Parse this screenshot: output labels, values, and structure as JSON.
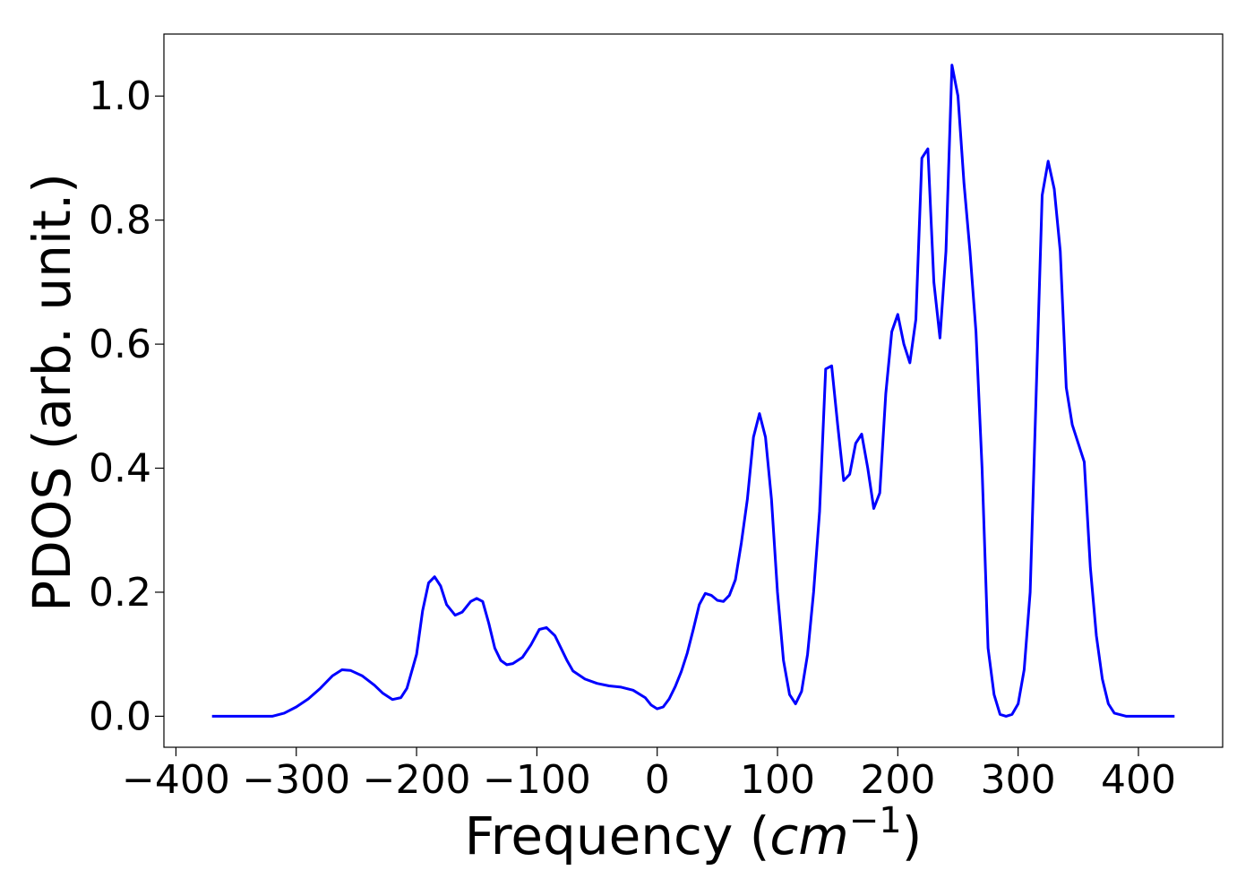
{
  "chart_data": {
    "type": "line",
    "title": "",
    "xlabel_prefix": "Frequency (",
    "xlabel_math_base": "cm",
    "xlabel_math_sup": "−1",
    "xlabel_suffix": ")",
    "ylabel": "PDOS (arb. unit.)",
    "xlim": [
      -410,
      470
    ],
    "ylim": [
      -0.05,
      1.1
    ],
    "xticks": [
      -400,
      -300,
      -200,
      -100,
      0,
      100,
      200,
      300,
      400
    ],
    "xtick_labels": [
      "−400",
      "−300",
      "−200",
      "−100",
      "0",
      "100",
      "200",
      "300",
      "400"
    ],
    "yticks": [
      0.0,
      0.2,
      0.4,
      0.6,
      0.8,
      1.0
    ],
    "ytick_labels": [
      "0.0",
      "0.2",
      "0.4",
      "0.6",
      "0.8",
      "1.0"
    ],
    "grid": false,
    "series": [
      {
        "color": "#0000ff",
        "x": [
          -370,
          -320,
          -310,
          -300,
          -290,
          -280,
          -270,
          -262,
          -255,
          -245,
          -235,
          -228,
          -220,
          -213,
          -208,
          -200,
          -195,
          -190,
          -185,
          -180,
          -175,
          -168,
          -162,
          -155,
          -150,
          -145,
          -140,
          -135,
          -130,
          -125,
          -120,
          -112,
          -105,
          -98,
          -92,
          -85,
          -80,
          -75,
          -70,
          -60,
          -50,
          -40,
          -30,
          -20,
          -10,
          -5,
          0,
          5,
          10,
          15,
          20,
          25,
          30,
          35,
          40,
          45,
          50,
          55,
          60,
          65,
          70,
          75,
          80,
          85,
          90,
          95,
          100,
          105,
          110,
          115,
          120,
          125,
          130,
          135,
          140,
          145,
          150,
          155,
          160,
          165,
          170,
          175,
          180,
          185,
          190,
          195,
          200,
          205,
          210,
          215,
          220,
          225,
          230,
          235,
          240,
          245,
          250,
          255,
          260,
          265,
          270,
          275,
          280,
          285,
          290,
          295,
          300,
          305,
          310,
          315,
          320,
          325,
          330,
          335,
          340,
          345,
          350,
          355,
          360,
          365,
          370,
          375,
          380,
          390,
          400,
          430
        ],
        "y": [
          0.0,
          0.0,
          0.005,
          0.015,
          0.028,
          0.045,
          0.065,
          0.075,
          0.074,
          0.065,
          0.05,
          0.037,
          0.027,
          0.03,
          0.045,
          0.1,
          0.17,
          0.215,
          0.225,
          0.21,
          0.18,
          0.163,
          0.168,
          0.185,
          0.19,
          0.185,
          0.15,
          0.11,
          0.09,
          0.083,
          0.085,
          0.095,
          0.115,
          0.14,
          0.143,
          0.13,
          0.11,
          0.09,
          0.073,
          0.06,
          0.053,
          0.049,
          0.047,
          0.042,
          0.03,
          0.018,
          0.012,
          0.015,
          0.028,
          0.048,
          0.072,
          0.102,
          0.14,
          0.18,
          0.198,
          0.195,
          0.187,
          0.185,
          0.195,
          0.22,
          0.28,
          0.35,
          0.45,
          0.488,
          0.45,
          0.35,
          0.2,
          0.09,
          0.035,
          0.02,
          0.04,
          0.1,
          0.2,
          0.33,
          0.56,
          0.565,
          0.47,
          0.38,
          0.39,
          0.44,
          0.455,
          0.4,
          0.335,
          0.36,
          0.52,
          0.62,
          0.648,
          0.6,
          0.57,
          0.64,
          0.9,
          0.915,
          0.7,
          0.61,
          0.75,
          1.05,
          1.0,
          0.86,
          0.75,
          0.62,
          0.4,
          0.11,
          0.035,
          0.003,
          0.0,
          0.003,
          0.02,
          0.075,
          0.2,
          0.52,
          0.84,
          0.895,
          0.85,
          0.75,
          0.53,
          0.47,
          0.44,
          0.41,
          0.24,
          0.13,
          0.06,
          0.02,
          0.005,
          0.0,
          0.0,
          0.0
        ]
      }
    ]
  }
}
